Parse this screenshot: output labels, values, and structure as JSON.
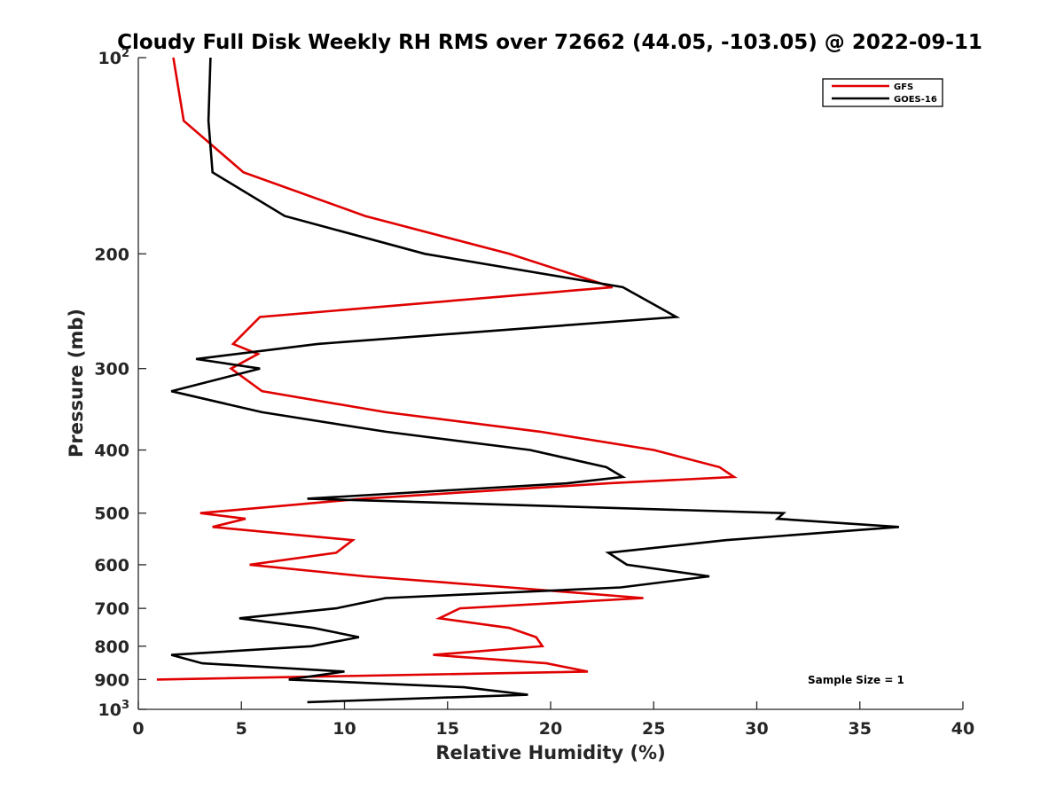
{
  "chart_data": {
    "type": "line",
    "title": "Cloudy Full Disk Weekly RH RMS over 72662 (44.05, -103.05) @ 2022-09-11",
    "xlabel": "Relative Humidity (%)",
    "ylabel": "Pressure (mb)",
    "xlim": [
      0,
      40
    ],
    "ylim": [
      100,
      1000
    ],
    "y_scale": "log",
    "y_reversed": true,
    "x_ticks": [
      "0",
      "5",
      "10",
      "15",
      "20",
      "25",
      "30",
      "35",
      "40"
    ],
    "x_tick_values": [
      0,
      5,
      10,
      15,
      20,
      25,
      30,
      35,
      40
    ],
    "y_ticks": [
      {
        "value": 100,
        "base": "10",
        "exp": "2"
      },
      {
        "value": 200,
        "label": "200"
      },
      {
        "value": 300,
        "label": "300"
      },
      {
        "value": 400,
        "label": "400"
      },
      {
        "value": 500,
        "label": "500"
      },
      {
        "value": 600,
        "label": "600"
      },
      {
        "value": 700,
        "label": "700"
      },
      {
        "value": 800,
        "label": "800"
      },
      {
        "value": 900,
        "label": "900"
      },
      {
        "value": 1000,
        "base": "10",
        "exp": "3"
      }
    ],
    "legend_position": "top-right",
    "annotation": "Sample Size = 1",
    "series": [
      {
        "name": "GFS",
        "color": "#e00000",
        "points": [
          [
            1.7,
            100
          ],
          [
            2.2,
            125
          ],
          [
            5.1,
            150
          ],
          [
            11.0,
            175
          ],
          [
            18.0,
            200
          ],
          [
            23.0,
            225
          ],
          [
            5.9,
            250
          ],
          [
            4.6,
            275
          ],
          [
            5.8,
            285
          ],
          [
            4.5,
            300
          ],
          [
            6.0,
            325
          ],
          [
            12.0,
            350
          ],
          [
            19.5,
            375
          ],
          [
            25.0,
            400
          ],
          [
            28.2,
            425
          ],
          [
            28.9,
            440
          ],
          [
            22.8,
            450
          ],
          [
            10.9,
            475
          ],
          [
            3.0,
            500
          ],
          [
            5.2,
            510
          ],
          [
            3.6,
            525
          ],
          [
            10.4,
            550
          ],
          [
            9.6,
            575
          ],
          [
            5.4,
            600
          ],
          [
            11.0,
            625
          ],
          [
            18.0,
            650
          ],
          [
            24.5,
            675
          ],
          [
            15.6,
            700
          ],
          [
            14.6,
            725
          ],
          [
            18.0,
            750
          ],
          [
            19.3,
            775
          ],
          [
            19.6,
            800
          ],
          [
            14.3,
            825
          ],
          [
            19.8,
            850
          ],
          [
            21.8,
            875
          ],
          [
            0.9,
            900
          ]
        ]
      },
      {
        "name": "GOES-16",
        "color": "#000000",
        "points": [
          [
            3.5,
            100
          ],
          [
            3.4,
            125
          ],
          [
            3.6,
            150
          ],
          [
            7.1,
            175
          ],
          [
            13.9,
            200
          ],
          [
            23.5,
            225
          ],
          [
            26.1,
            250
          ],
          [
            8.7,
            275
          ],
          [
            2.8,
            290
          ],
          [
            5.9,
            300
          ],
          [
            1.6,
            325
          ],
          [
            6.0,
            350
          ],
          [
            12.0,
            375
          ],
          [
            19.0,
            400
          ],
          [
            22.7,
            425
          ],
          [
            23.5,
            440
          ],
          [
            20.8,
            450
          ],
          [
            8.2,
            475
          ],
          [
            31.3,
            500
          ],
          [
            31.0,
            510
          ],
          [
            36.9,
            525
          ],
          [
            28.5,
            550
          ],
          [
            22.8,
            575
          ],
          [
            23.7,
            600
          ],
          [
            27.7,
            625
          ],
          [
            23.4,
            650
          ],
          [
            12.0,
            675
          ],
          [
            9.6,
            700
          ],
          [
            4.9,
            725
          ],
          [
            8.5,
            750
          ],
          [
            10.7,
            775
          ],
          [
            8.4,
            800
          ],
          [
            1.6,
            825
          ],
          [
            3.1,
            850
          ],
          [
            10.0,
            875
          ],
          [
            7.3,
            900
          ],
          [
            15.8,
            925
          ],
          [
            18.9,
            950
          ],
          [
            8.2,
            975
          ]
        ]
      }
    ]
  }
}
